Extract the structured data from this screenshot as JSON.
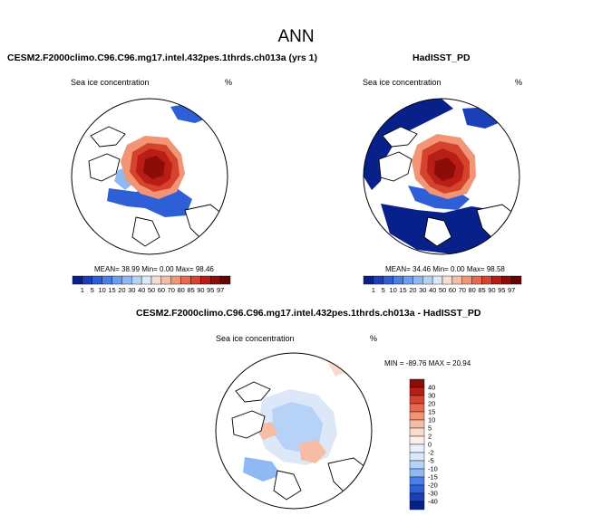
{
  "figure": {
    "title": "ANN",
    "model_title": "CESM2.F2000climo.C96.C96.mg17.intel.432pes.1thrds.ch013a (yrs 1)",
    "obs_title": "HadISST_PD",
    "diff_title": "CESM2.F2000climo.C96.C96.mg17.intel.432pes.1thrds.ch013a - HadISST_PD"
  },
  "chart_data": [
    {
      "type": "heatmap",
      "projection": "north-polar-stereographic",
      "panel": "model",
      "title": "CESM2.F2000climo.C96.C96.mg17.intel.432pes.1thrds.ch013a (yrs 1)",
      "field_label": "Sea ice concentration",
      "units": "%",
      "stats_text": "MEAN=  38.99   Min=   0.00   Max=  98.46",
      "stats": {
        "mean": 38.99,
        "min": 0.0,
        "max": 98.46
      },
      "colorbar": {
        "levels": [
          "1",
          "5",
          "10",
          "15",
          "20",
          "30",
          "40",
          "50",
          "60",
          "70",
          "80",
          "85",
          "90",
          "95",
          "97"
        ],
        "colors": [
          "#08208a",
          "#1a3fb8",
          "#2f5fd6",
          "#4a80e6",
          "#6a9ef0",
          "#8fb9f4",
          "#b6d2f7",
          "#dce8f7",
          "#f8dccf",
          "#f6bca4",
          "#f19576",
          "#e8694d",
          "#d6432c",
          "#b81e15",
          "#8c0c08",
          "#650304"
        ]
      }
    },
    {
      "type": "heatmap",
      "projection": "north-polar-stereographic",
      "panel": "obs",
      "title": "HadISST_PD",
      "field_label": "Sea ice concentration",
      "units": "%",
      "stats_text": "MEAN=  34.46   Min=   0.00   Max=  98.58",
      "stats": {
        "mean": 34.46,
        "min": 0.0,
        "max": 98.58
      },
      "colorbar": {
        "levels": [
          "1",
          "5",
          "10",
          "15",
          "20",
          "30",
          "40",
          "50",
          "60",
          "70",
          "80",
          "85",
          "90",
          "95",
          "97"
        ],
        "colors": [
          "#08208a",
          "#1a3fb8",
          "#2f5fd6",
          "#4a80e6",
          "#6a9ef0",
          "#8fb9f4",
          "#b6d2f7",
          "#dce8f7",
          "#f8dccf",
          "#f6bca4",
          "#f19576",
          "#e8694d",
          "#d6432c",
          "#b81e15",
          "#8c0c08",
          "#650304"
        ]
      }
    },
    {
      "type": "heatmap",
      "projection": "north-polar-stereographic",
      "panel": "difference",
      "title": "CESM2.F2000climo.C96.C96.mg17.intel.432pes.1thrds.ch013a - HadISST_PD",
      "field_label": "Sea ice concentration",
      "units": "%",
      "stats_text": "MIN = -89.76  MAX =  20.94",
      "stats": {
        "min": -89.76,
        "max": 20.94
      },
      "colorbar": {
        "levels": [
          "40",
          "30",
          "20",
          "15",
          "10",
          "5",
          "2",
          "0",
          "-2",
          "-5",
          "-10",
          "-15",
          "-20",
          "-30",
          "-40"
        ],
        "colors": [
          "#8c0c08",
          "#b81e15",
          "#d6432c",
          "#e8694d",
          "#f19576",
          "#f6bca4",
          "#f8dccf",
          "#fdf0e8",
          "#eaf1fb",
          "#dce8f7",
          "#b6d2f7",
          "#8fb9f4",
          "#4a80e6",
          "#2f5fd6",
          "#1a3fb8",
          "#08208a"
        ]
      }
    }
  ]
}
